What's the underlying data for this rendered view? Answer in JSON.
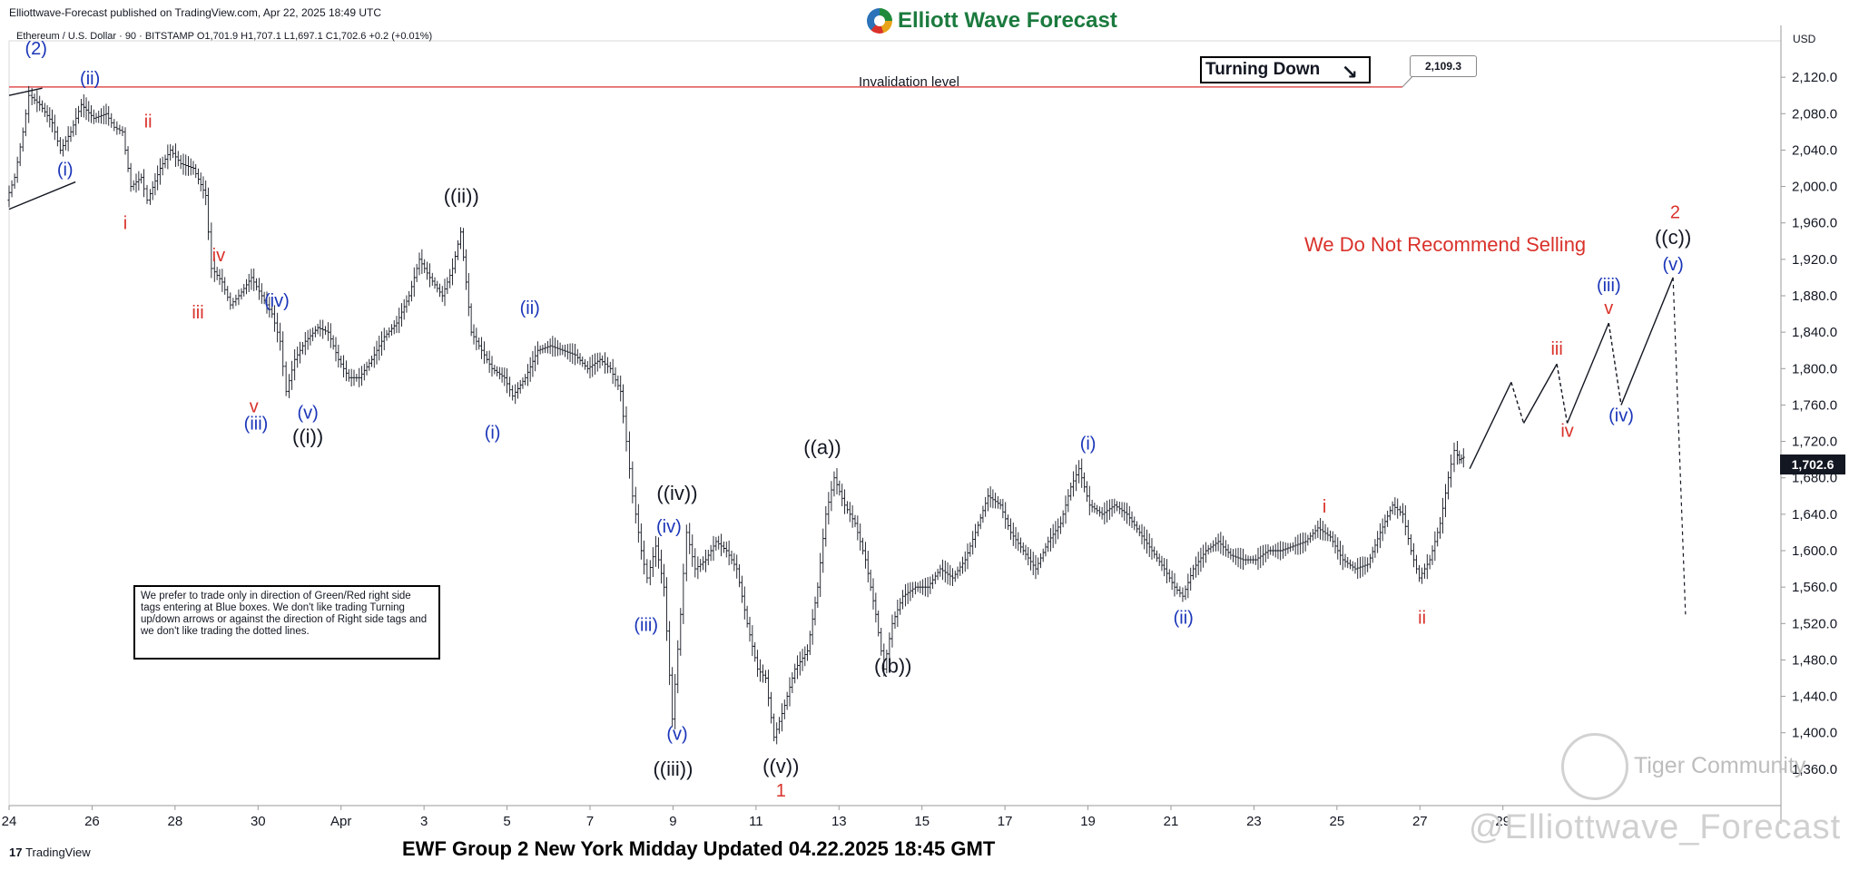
{
  "header": {
    "published": "Elliottwave-Forecast published on TradingView.com, Apr 22, 2025 18:49 UTC",
    "symbol_line": "Ethereum / U.S. Dollar · 90 · BITSTAMP  O1,701.9  H1,707.1  L1,697.1  C1,702.6  +0.2 (+0.01%)"
  },
  "brand": {
    "name": "Elliott Wave Forecast"
  },
  "currency": "USD",
  "turning_box": {
    "label": "Turning Down",
    "arrow": "↘"
  },
  "invalidation": {
    "label": "Invalidation level",
    "price": "2,109.3"
  },
  "last_price": "1,702.6",
  "recommendation": "We Do Not Recommend Selling",
  "note": "We prefer to trade only in direction of Green/Red right side tags entering at Blue boxes. We don't like trading Turning up/down arrows or against the direction of Right side tags and we don't like trading the dotted lines.",
  "footer": "EWF Group 2 New York Midday Updated 04.22.2025 18:45 GMT",
  "tradingview_logo": "TradingView",
  "watermarks": {
    "community": "Tiger Community",
    "handle": "@Elliottwave_Forecast"
  },
  "colors": {
    "red": "#d9322b",
    "blue": "#1a35b8",
    "black": "#131722",
    "invalidation_line": "#e05050"
  },
  "chart_data": {
    "type": "line",
    "title": "Ethereum / U.S. Dollar · 90 · BITSTAMP",
    "ylim": [
      1320,
      2160
    ],
    "y_ticks": [
      2120,
      2080,
      2040,
      2000,
      1960,
      1920,
      1880,
      1840,
      1800,
      1760,
      1720,
      1680,
      1640,
      1600,
      1560,
      1520,
      1480,
      1440,
      1400,
      1360
    ],
    "y_tick_labels": [
      "2,120.0",
      "2,080.0",
      "2,040.0",
      "2,000.0",
      "1,960.0",
      "1,920.0",
      "1,880.0",
      "1,840.0",
      "1,800.0",
      "1,760.0",
      "1,720.0",
      "1,680.0",
      "1,640.0",
      "1,600.0",
      "1,560.0",
      "1,520.0",
      "1,480.0",
      "1,440.0",
      "1,400.0",
      "1,360.0"
    ],
    "x_tick_labels": [
      "24",
      "26",
      "28",
      "30",
      "Apr",
      "3",
      "5",
      "7",
      "9",
      "11",
      "13",
      "15",
      "17",
      "19",
      "21",
      "23",
      "25",
      "27",
      "29"
    ],
    "xlim_days": [
      0,
      36.2
    ],
    "series": [
      {
        "points": [
          [
            0,
            1985
          ],
          [
            0.2,
            2010
          ],
          [
            0.4,
            2060
          ],
          [
            0.55,
            2100
          ],
          [
            0.8,
            2090
          ],
          [
            1.1,
            2070
          ],
          [
            1.3,
            2040
          ],
          [
            1.55,
            2060
          ],
          [
            1.8,
            2090
          ],
          [
            2.1,
            2075
          ],
          [
            2.4,
            2080
          ],
          [
            2.6,
            2065
          ],
          [
            2.8,
            2060
          ],
          [
            3.0,
            2000
          ],
          [
            3.25,
            2010
          ],
          [
            3.4,
            1985
          ],
          [
            3.7,
            2020
          ],
          [
            3.95,
            2040
          ],
          [
            4.2,
            2025
          ],
          [
            4.5,
            2020
          ],
          [
            4.8,
            1990
          ],
          [
            4.95,
            1910
          ],
          [
            5.2,
            1895
          ],
          [
            5.4,
            1870
          ],
          [
            5.6,
            1880
          ],
          [
            5.9,
            1900
          ],
          [
            6.15,
            1880
          ],
          [
            6.4,
            1860
          ],
          [
            6.6,
            1830
          ],
          [
            6.75,
            1775
          ],
          [
            6.95,
            1810
          ],
          [
            7.2,
            1830
          ],
          [
            7.5,
            1845
          ],
          [
            7.75,
            1840
          ],
          [
            8.0,
            1810
          ],
          [
            8.25,
            1790
          ],
          [
            8.5,
            1790
          ],
          [
            8.8,
            1810
          ],
          [
            9.1,
            1835
          ],
          [
            9.4,
            1850
          ],
          [
            9.7,
            1880
          ],
          [
            9.95,
            1920
          ],
          [
            10.2,
            1900
          ],
          [
            10.5,
            1880
          ],
          [
            10.75,
            1910
          ],
          [
            10.95,
            1950
          ],
          [
            11.2,
            1840
          ],
          [
            11.45,
            1820
          ],
          [
            11.7,
            1800
          ],
          [
            12.0,
            1790
          ],
          [
            12.2,
            1770
          ],
          [
            12.5,
            1790
          ],
          [
            12.8,
            1820
          ],
          [
            13.1,
            1825
          ],
          [
            13.4,
            1820
          ],
          [
            13.7,
            1815
          ],
          [
            14.0,
            1800
          ],
          [
            14.3,
            1810
          ],
          [
            14.55,
            1800
          ],
          [
            14.8,
            1775
          ],
          [
            14.95,
            1720
          ],
          [
            15.1,
            1660
          ],
          [
            15.3,
            1600
          ],
          [
            15.45,
            1570
          ],
          [
            15.65,
            1605
          ],
          [
            15.85,
            1560
          ],
          [
            16.05,
            1415
          ],
          [
            16.25,
            1530
          ],
          [
            16.4,
            1620
          ],
          [
            16.6,
            1580
          ],
          [
            16.85,
            1590
          ],
          [
            17.1,
            1610
          ],
          [
            17.35,
            1600
          ],
          [
            17.6,
            1580
          ],
          [
            17.85,
            1520
          ],
          [
            18.1,
            1470
          ],
          [
            18.3,
            1460
          ],
          [
            18.5,
            1395
          ],
          [
            18.75,
            1430
          ],
          [
            19.0,
            1470
          ],
          [
            19.3,
            1490
          ],
          [
            19.55,
            1560
          ],
          [
            19.75,
            1640
          ],
          [
            19.95,
            1680
          ],
          [
            20.2,
            1650
          ],
          [
            20.45,
            1630
          ],
          [
            20.7,
            1590
          ],
          [
            20.95,
            1530
          ],
          [
            21.15,
            1470
          ],
          [
            21.35,
            1520
          ],
          [
            21.6,
            1550
          ],
          [
            21.9,
            1560
          ],
          [
            22.2,
            1560
          ],
          [
            22.5,
            1580
          ],
          [
            22.8,
            1570
          ],
          [
            23.1,
            1590
          ],
          [
            23.35,
            1620
          ],
          [
            23.65,
            1660
          ],
          [
            23.95,
            1650
          ],
          [
            24.2,
            1620
          ],
          [
            24.5,
            1600
          ],
          [
            24.8,
            1580
          ],
          [
            25.1,
            1610
          ],
          [
            25.4,
            1630
          ],
          [
            25.65,
            1670
          ],
          [
            25.85,
            1690
          ],
          [
            26.1,
            1650
          ],
          [
            26.4,
            1640
          ],
          [
            26.7,
            1650
          ],
          [
            27.0,
            1640
          ],
          [
            27.3,
            1620
          ],
          [
            27.6,
            1600
          ],
          [
            27.9,
            1580
          ],
          [
            28.15,
            1560
          ],
          [
            28.35,
            1550
          ],
          [
            28.6,
            1580
          ],
          [
            28.9,
            1600
          ],
          [
            29.2,
            1610
          ],
          [
            29.5,
            1595
          ],
          [
            29.8,
            1590
          ],
          [
            30.1,
            1590
          ],
          [
            30.4,
            1600
          ],
          [
            30.7,
            1600
          ],
          [
            31.0,
            1605
          ],
          [
            31.3,
            1610
          ],
          [
            31.6,
            1625
          ],
          [
            31.9,
            1615
          ],
          [
            32.2,
            1590
          ],
          [
            32.5,
            1580
          ],
          [
            32.8,
            1585
          ],
          [
            33.1,
            1620
          ],
          [
            33.4,
            1650
          ],
          [
            33.65,
            1640
          ],
          [
            33.85,
            1600
          ],
          [
            34.05,
            1570
          ],
          [
            34.3,
            1590
          ],
          [
            34.55,
            1630
          ],
          [
            34.75,
            1680
          ],
          [
            34.9,
            1710
          ],
          [
            35.0,
            1700
          ],
          [
            35.1,
            1702.6
          ]
        ]
      }
    ],
    "projection": [
      [
        35.2,
        1690
      ],
      [
        36.2,
        1785
      ],
      [
        36.5,
        1740
      ],
      [
        37.3,
        1805
      ],
      [
        37.55,
        1740
      ],
      [
        38.55,
        1850
      ],
      [
        38.85,
        1760
      ],
      [
        40.1,
        1900
      ]
    ],
    "projection_dotted": [
      [
        36.2,
        1785
      ],
      [
        36.5,
        1740
      ],
      [
        37.3,
        1805
      ],
      [
        37.55,
        1740
      ],
      [
        38.55,
        1850
      ],
      [
        38.85,
        1760
      ],
      [
        40.1,
        1900
      ],
      [
        40.4,
        1530
      ]
    ],
    "wave_labels": [
      {
        "text": "(2)",
        "d": 0.65,
        "p": 2145,
        "color": "blue"
      },
      {
        "text": "(i)",
        "d": 1.35,
        "p": 2012,
        "color": "blue"
      },
      {
        "text": "(ii)",
        "d": 1.95,
        "p": 2112,
        "color": "blue"
      },
      {
        "text": "i",
        "d": 2.8,
        "p": 1953,
        "color": "red"
      },
      {
        "text": "ii",
        "d": 3.35,
        "p": 2065,
        "color": "red"
      },
      {
        "text": "iii",
        "d": 4.55,
        "p": 1855,
        "color": "red"
      },
      {
        "text": "iv",
        "d": 5.05,
        "p": 1918,
        "color": "red"
      },
      {
        "text": "v",
        "d": 5.9,
        "p": 1752,
        "color": "red"
      },
      {
        "text": "(iii)",
        "d": 5.95,
        "p": 1733,
        "color": "blue"
      },
      {
        "text": "(iv)",
        "d": 6.45,
        "p": 1868,
        "color": "blue"
      },
      {
        "text": "(v)",
        "d": 7.2,
        "p": 1745,
        "color": "blue"
      },
      {
        "text": "((i))",
        "d": 7.2,
        "p": 1718,
        "color": "black"
      },
      {
        "text": "((ii))",
        "d": 10.9,
        "p": 1982,
        "color": "black"
      },
      {
        "text": "(i)",
        "d": 11.65,
        "p": 1723,
        "color": "blue"
      },
      {
        "text": "(ii)",
        "d": 12.55,
        "p": 1860,
        "color": "blue"
      },
      {
        "text": "((a))",
        "d": 19.6,
        "p": 1706,
        "color": "black"
      },
      {
        "text": "((iv))",
        "d": 16.1,
        "p": 1656,
        "color": "black"
      },
      {
        "text": "(iv)",
        "d": 15.9,
        "p": 1620,
        "color": "blue"
      },
      {
        "text": "(iii)",
        "d": 15.35,
        "p": 1512,
        "color": "blue"
      },
      {
        "text": "(v)",
        "d": 16.1,
        "p": 1392,
        "color": "blue"
      },
      {
        "text": "((iii))",
        "d": 16.0,
        "p": 1353,
        "color": "black"
      },
      {
        "text": "((v))",
        "d": 18.6,
        "p": 1356,
        "color": "black"
      },
      {
        "text": "1",
        "d": 18.6,
        "p": 1330,
        "color": "red"
      },
      {
        "text": "((b))",
        "d": 21.3,
        "p": 1466,
        "color": "black"
      },
      {
        "text": "(i)",
        "d": 26.0,
        "p": 1711,
        "color": "blue"
      },
      {
        "text": "(ii)",
        "d": 28.3,
        "p": 1520,
        "color": "blue"
      },
      {
        "text": "i",
        "d": 31.7,
        "p": 1642,
        "color": "red"
      },
      {
        "text": "ii",
        "d": 34.05,
        "p": 1520,
        "color": "red"
      },
      {
        "text": "iii",
        "d": 37.3,
        "p": 1815,
        "color": "red"
      },
      {
        "text": "iv",
        "d": 37.55,
        "p": 1725,
        "color": "red"
      },
      {
        "text": "v",
        "d": 38.55,
        "p": 1860,
        "color": "red"
      },
      {
        "text": "(iii)",
        "d": 38.55,
        "p": 1885,
        "color": "blue"
      },
      {
        "text": "(iv)",
        "d": 38.85,
        "p": 1742,
        "color": "blue"
      },
      {
        "text": "(v)",
        "d": 40.1,
        "p": 1908,
        "color": "blue"
      },
      {
        "text": "((c))",
        "d": 40.1,
        "p": 1937,
        "color": "black"
      },
      {
        "text": "2",
        "d": 40.15,
        "p": 1965,
        "color": "red"
      }
    ]
  }
}
